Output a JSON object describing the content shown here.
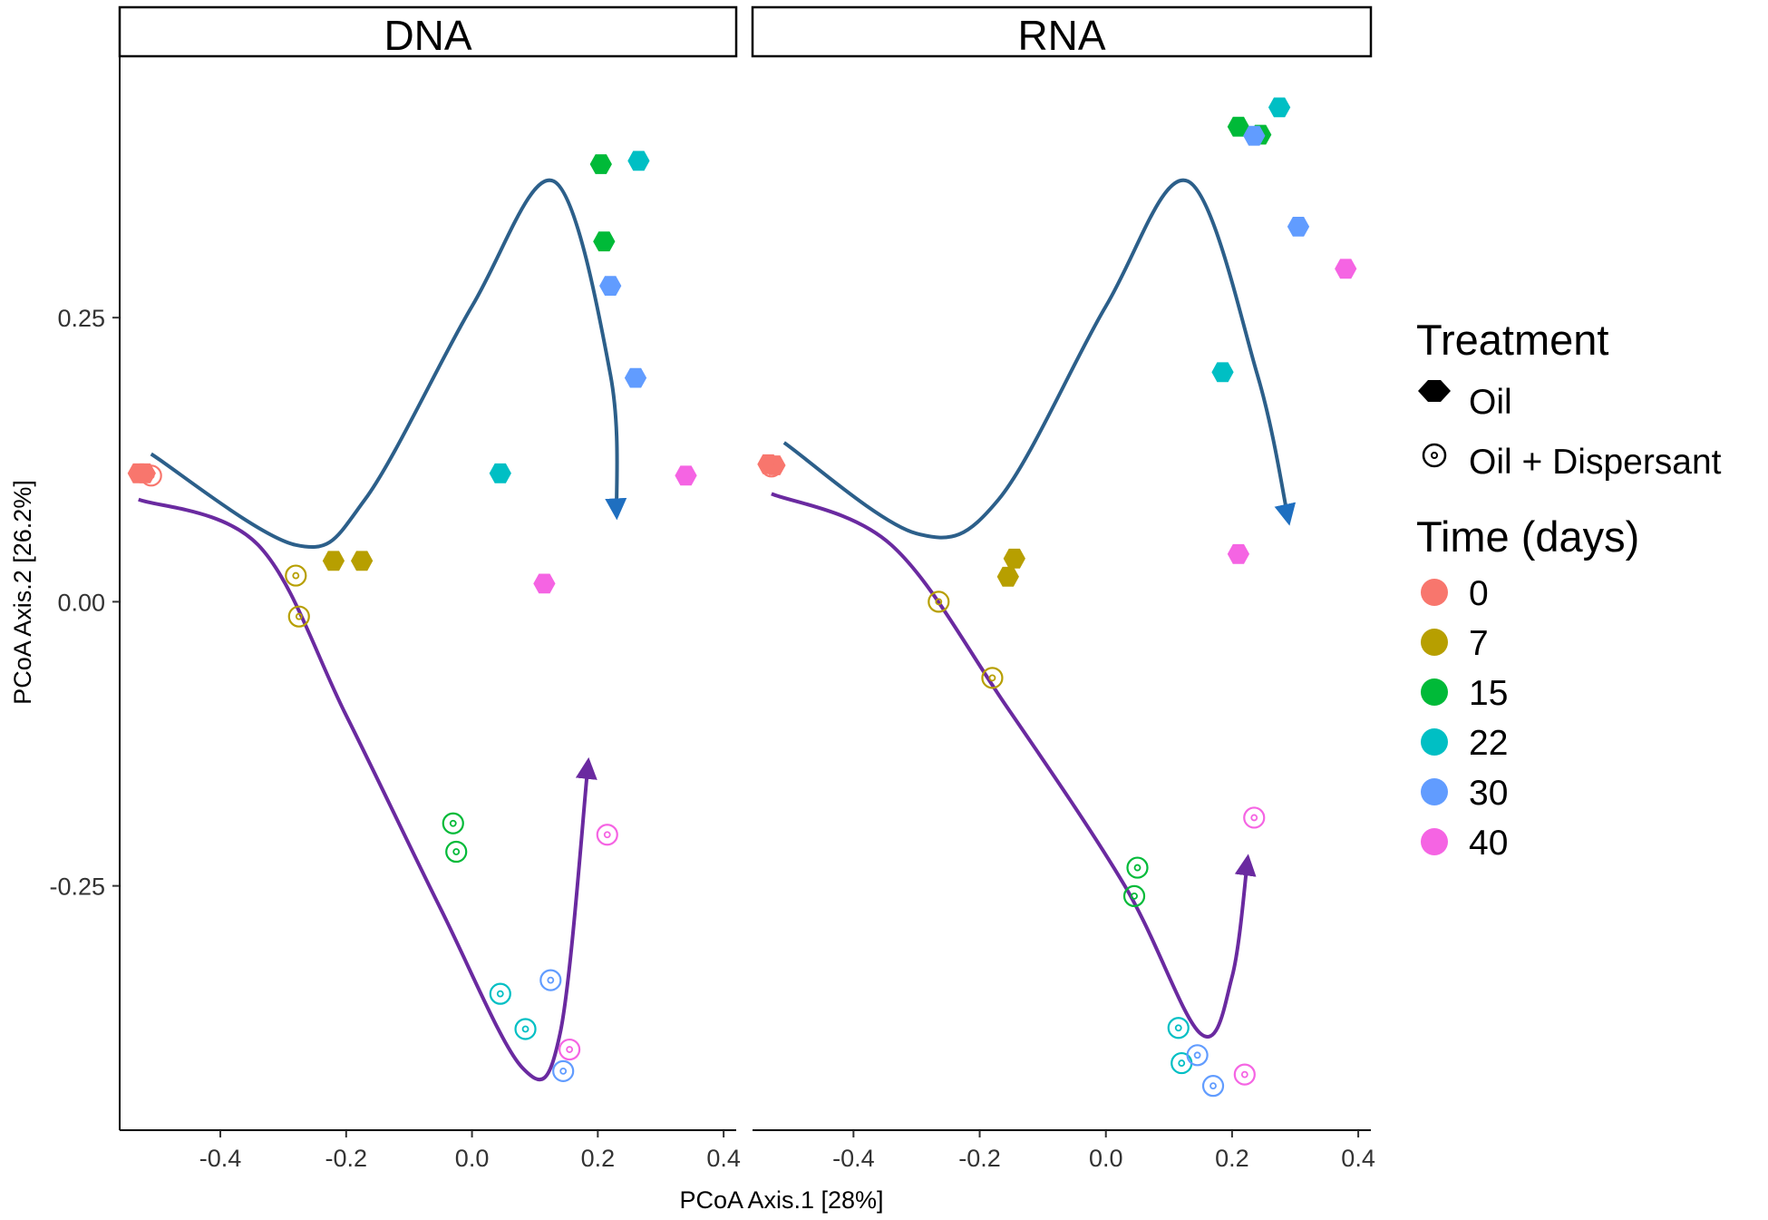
{
  "chart_data": {
    "type": "scatter",
    "xlabel": "PCoA Axis.1   [28%]",
    "ylabel": "PCoA Axis.2   [26.2%]",
    "xlim": [
      -0.56,
      0.42
    ],
    "ylim": [
      -0.465,
      0.48
    ],
    "x_ticks": [
      -0.4,
      -0.2,
      0.0,
      0.2,
      0.4
    ],
    "x_tick_labels": [
      "-0.4",
      "-0.2",
      "0.0",
      "0.2",
      "0.4"
    ],
    "y_ticks": [
      0.25,
      0.0,
      -0.25
    ],
    "y_tick_labels": [
      "0.25",
      "0.00",
      "-0.25"
    ],
    "panels": [
      {
        "name": "DNA",
        "points": [
          {
            "x": -0.53,
            "y": 0.113,
            "time": "0",
            "treatment": "Oil"
          },
          {
            "x": -0.52,
            "y": 0.113,
            "time": "0",
            "treatment": "Oil"
          },
          {
            "x": -0.51,
            "y": 0.111,
            "time": "0",
            "treatment": "Oil + Dispersant"
          },
          {
            "x": -0.22,
            "y": 0.036,
            "time": "7",
            "treatment": "Oil"
          },
          {
            "x": -0.175,
            "y": 0.036,
            "time": "7",
            "treatment": "Oil"
          },
          {
            "x": -0.28,
            "y": 0.023,
            "time": "7",
            "treatment": "Oil + Dispersant"
          },
          {
            "x": -0.275,
            "y": -0.013,
            "time": "7",
            "treatment": "Oil + Dispersant"
          },
          {
            "x": 0.205,
            "y": 0.385,
            "time": "15",
            "treatment": "Oil"
          },
          {
            "x": 0.21,
            "y": 0.317,
            "time": "15",
            "treatment": "Oil"
          },
          {
            "x": -0.03,
            "y": -0.195,
            "time": "15",
            "treatment": "Oil + Dispersant"
          },
          {
            "x": -0.025,
            "y": -0.22,
            "time": "15",
            "treatment": "Oil + Dispersant"
          },
          {
            "x": 0.265,
            "y": 0.388,
            "time": "22",
            "treatment": "Oil"
          },
          {
            "x": 0.045,
            "y": 0.113,
            "time": "22",
            "treatment": "Oil"
          },
          {
            "x": 0.045,
            "y": -0.345,
            "time": "22",
            "treatment": "Oil + Dispersant"
          },
          {
            "x": 0.085,
            "y": -0.376,
            "time": "22",
            "treatment": "Oil + Dispersant"
          },
          {
            "x": 0.22,
            "y": 0.278,
            "time": "30",
            "treatment": "Oil"
          },
          {
            "x": 0.26,
            "y": 0.197,
            "time": "30",
            "treatment": "Oil"
          },
          {
            "x": 0.125,
            "y": -0.333,
            "time": "30",
            "treatment": "Oil + Dispersant"
          },
          {
            "x": 0.145,
            "y": -0.413,
            "time": "30",
            "treatment": "Oil + Dispersant"
          },
          {
            "x": 0.34,
            "y": 0.111,
            "time": "40",
            "treatment": "Oil"
          },
          {
            "x": 0.115,
            "y": 0.016,
            "time": "40",
            "treatment": "Oil"
          },
          {
            "x": 0.215,
            "y": -0.205,
            "time": "40",
            "treatment": "Oil + Dispersant"
          },
          {
            "x": 0.155,
            "y": -0.394,
            "time": "40",
            "treatment": "Oil + Dispersant"
          }
        ],
        "trajectories": [
          {
            "name": "Oil",
            "color": "#2c5f8a",
            "arrow_color": "#1f6fc0",
            "path": [
              [
                -0.51,
                0.13
              ],
              [
                -0.28,
                0.05
              ],
              [
                -0.17,
                0.09
              ],
              [
                0.0,
                0.26
              ],
              [
                0.13,
                0.37
              ],
              [
                0.22,
                0.2
              ],
              [
                0.23,
                0.075
              ]
            ]
          },
          {
            "name": "Oil + Dispersant",
            "color": "#6a2aa0",
            "arrow_color": "#6a2aa0",
            "path": [
              [
                -0.53,
                0.09
              ],
              [
                -0.34,
                0.05
              ],
              [
                -0.2,
                -0.1
              ],
              [
                -0.05,
                -0.27
              ],
              [
                0.08,
                -0.41
              ],
              [
                0.14,
                -0.38
              ],
              [
                0.185,
                -0.14
              ]
            ]
          }
        ]
      },
      {
        "name": "RNA",
        "points": [
          {
            "x": -0.535,
            "y": 0.121,
            "time": "0",
            "treatment": "Oil"
          },
          {
            "x": -0.525,
            "y": 0.12,
            "time": "0",
            "treatment": "Oil"
          },
          {
            "x": -0.53,
            "y": 0.119,
            "time": "0",
            "treatment": "Oil + Dispersant"
          },
          {
            "x": -0.145,
            "y": 0.038,
            "time": "7",
            "treatment": "Oil"
          },
          {
            "x": -0.155,
            "y": 0.022,
            "time": "7",
            "treatment": "Oil"
          },
          {
            "x": -0.265,
            "y": 0.0,
            "time": "7",
            "treatment": "Oil + Dispersant"
          },
          {
            "x": -0.18,
            "y": -0.067,
            "time": "7",
            "treatment": "Oil + Dispersant"
          },
          {
            "x": 0.21,
            "y": 0.418,
            "time": "15",
            "treatment": "Oil"
          },
          {
            "x": 0.245,
            "y": 0.411,
            "time": "15",
            "treatment": "Oil"
          },
          {
            "x": 0.05,
            "y": -0.234,
            "time": "15",
            "treatment": "Oil + Dispersant"
          },
          {
            "x": 0.045,
            "y": -0.259,
            "time": "15",
            "treatment": "Oil + Dispersant"
          },
          {
            "x": 0.275,
            "y": 0.435,
            "time": "22",
            "treatment": "Oil"
          },
          {
            "x": 0.185,
            "y": 0.202,
            "time": "22",
            "treatment": "Oil"
          },
          {
            "x": 0.115,
            "y": -0.375,
            "time": "22",
            "treatment": "Oil + Dispersant"
          },
          {
            "x": 0.12,
            "y": -0.406,
            "time": "22",
            "treatment": "Oil + Dispersant"
          },
          {
            "x": 0.235,
            "y": 0.41,
            "time": "30",
            "treatment": "Oil"
          },
          {
            "x": 0.305,
            "y": 0.33,
            "time": "30",
            "treatment": "Oil"
          },
          {
            "x": 0.145,
            "y": -0.399,
            "time": "30",
            "treatment": "Oil + Dispersant"
          },
          {
            "x": 0.17,
            "y": -0.426,
            "time": "30",
            "treatment": "Oil + Dispersant"
          },
          {
            "x": 0.38,
            "y": 0.293,
            "time": "40",
            "treatment": "Oil"
          },
          {
            "x": 0.21,
            "y": 0.042,
            "time": "40",
            "treatment": "Oil"
          },
          {
            "x": 0.235,
            "y": -0.19,
            "time": "40",
            "treatment": "Oil + Dispersant"
          },
          {
            "x": 0.22,
            "y": -0.416,
            "time": "40",
            "treatment": "Oil + Dispersant"
          }
        ],
        "trajectories": [
          {
            "name": "Oil",
            "color": "#2c5f8a",
            "arrow_color": "#1f6fc0",
            "path": [
              [
                -0.51,
                0.14
              ],
              [
                -0.3,
                0.06
              ],
              [
                -0.17,
                0.09
              ],
              [
                0.0,
                0.26
              ],
              [
                0.13,
                0.37
              ],
              [
                0.24,
                0.2
              ],
              [
                0.29,
                0.07
              ]
            ]
          },
          {
            "name": "Oil + Dispersant",
            "color": "#6a2aa0",
            "arrow_color": "#6a2aa0",
            "path": [
              [
                -0.53,
                0.095
              ],
              [
                -0.34,
                0.05
              ],
              [
                -0.16,
                -0.09
              ],
              [
                0.03,
                -0.25
              ],
              [
                0.15,
                -0.38
              ],
              [
                0.2,
                -0.33
              ],
              [
                0.225,
                -0.225
              ]
            ]
          }
        ]
      }
    ],
    "legend": {
      "position": "right",
      "treatment_title": "Treatment",
      "treatment_items": [
        {
          "label": "Oil",
          "shape": "filled"
        },
        {
          "label": "Oil + Dispersant",
          "shape": "target"
        }
      ],
      "time_title": "Time (days)",
      "time_items": [
        {
          "label": "0",
          "color": "#f8766d"
        },
        {
          "label": "7",
          "color": "#b79f00"
        },
        {
          "label": "15",
          "color": "#00ba38"
        },
        {
          "label": "22",
          "color": "#00bfc4"
        },
        {
          "label": "30",
          "color": "#619cff"
        },
        {
          "label": "40",
          "color": "#f564e3"
        }
      ]
    }
  }
}
